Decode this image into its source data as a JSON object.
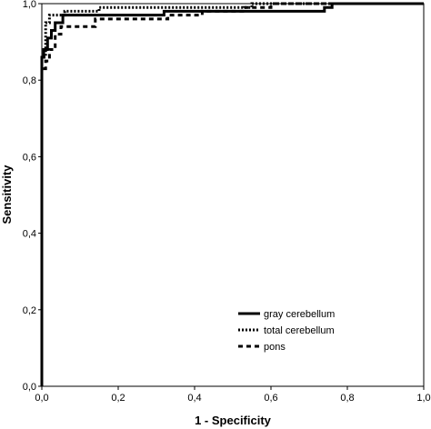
{
  "chart_data": {
    "type": "line",
    "title": "",
    "xlabel": "1 - Specificity",
    "ylabel": "Sensitivity",
    "xlim": [
      0,
      1
    ],
    "ylim": [
      0,
      1
    ],
    "x_ticks": [
      "0,0",
      "0,2",
      "0,4",
      "0,6",
      "0,8",
      "1,0"
    ],
    "y_ticks": [
      "0,0",
      "0,2",
      "0,4",
      "0,6",
      "0,8",
      "1,0"
    ],
    "grid": false,
    "legend_position": "bottom-right",
    "series": [
      {
        "name": "gray cerebellum",
        "style": "solid",
        "color": "#000000",
        "points": [
          [
            0,
            0
          ],
          [
            0,
            0.86
          ],
          [
            0.005,
            0.86
          ],
          [
            0.005,
            0.88
          ],
          [
            0.015,
            0.88
          ],
          [
            0.015,
            0.91
          ],
          [
            0.025,
            0.91
          ],
          [
            0.025,
            0.93
          ],
          [
            0.035,
            0.93
          ],
          [
            0.035,
            0.95
          ],
          [
            0.055,
            0.95
          ],
          [
            0.055,
            0.97
          ],
          [
            0.32,
            0.97
          ],
          [
            0.32,
            0.98
          ],
          [
            0.74,
            0.98
          ],
          [
            0.74,
            0.99
          ],
          [
            0.76,
            0.99
          ],
          [
            0.76,
            1.0
          ],
          [
            1.0,
            1.0
          ]
        ]
      },
      {
        "name": "total cerebellum",
        "style": "dotted",
        "color": "#000000",
        "points": [
          [
            0,
            0
          ],
          [
            0,
            0.86
          ],
          [
            0.01,
            0.86
          ],
          [
            0.01,
            0.95
          ],
          [
            0.02,
            0.95
          ],
          [
            0.02,
            0.97
          ],
          [
            0.06,
            0.97
          ],
          [
            0.06,
            0.98
          ],
          [
            0.15,
            0.98
          ],
          [
            0.15,
            0.99
          ],
          [
            0.55,
            0.99
          ],
          [
            0.55,
            1.0
          ],
          [
            1.0,
            1.0
          ]
        ]
      },
      {
        "name": "pons",
        "style": "dashed",
        "color": "#000000",
        "points": [
          [
            0,
            0
          ],
          [
            0,
            0.83
          ],
          [
            0.01,
            0.83
          ],
          [
            0.01,
            0.85
          ],
          [
            0.02,
            0.85
          ],
          [
            0.02,
            0.88
          ],
          [
            0.035,
            0.88
          ],
          [
            0.035,
            0.92
          ],
          [
            0.05,
            0.92
          ],
          [
            0.05,
            0.94
          ],
          [
            0.14,
            0.94
          ],
          [
            0.14,
            0.96
          ],
          [
            0.33,
            0.96
          ],
          [
            0.33,
            0.97
          ],
          [
            0.42,
            0.97
          ],
          [
            0.42,
            0.98
          ],
          [
            0.53,
            0.98
          ],
          [
            0.53,
            0.99
          ],
          [
            0.6,
            0.99
          ],
          [
            0.6,
            1.0
          ],
          [
            1.0,
            1.0
          ]
        ]
      }
    ]
  }
}
